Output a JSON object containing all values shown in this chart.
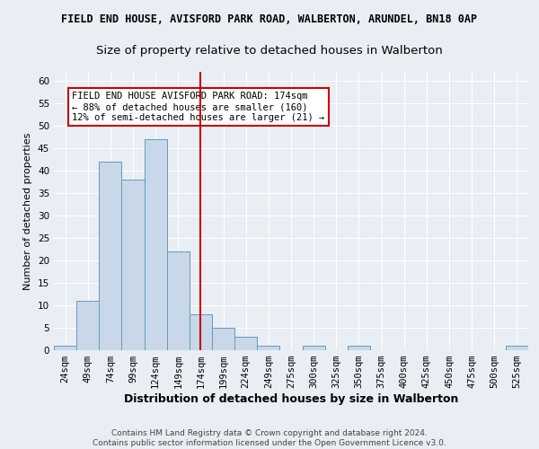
{
  "title": "FIELD END HOUSE, AVISFORD PARK ROAD, WALBERTON, ARUNDEL, BN18 0AP",
  "subtitle": "Size of property relative to detached houses in Walberton",
  "xlabel": "Distribution of detached houses by size in Walberton",
  "ylabel": "Number of detached properties",
  "footer_line1": "Contains HM Land Registry data © Crown copyright and database right 2024.",
  "footer_line2": "Contains public sector information licensed under the Open Government Licence v3.0.",
  "categories": [
    "24sqm",
    "49sqm",
    "74sqm",
    "99sqm",
    "124sqm",
    "149sqm",
    "174sqm",
    "199sqm",
    "224sqm",
    "249sqm",
    "275sqm",
    "300sqm",
    "325sqm",
    "350sqm",
    "375sqm",
    "400sqm",
    "425sqm",
    "450sqm",
    "475sqm",
    "500sqm",
    "525sqm"
  ],
  "values": [
    1,
    11,
    42,
    38,
    47,
    22,
    8,
    5,
    3,
    1,
    0,
    1,
    0,
    1,
    0,
    0,
    0,
    0,
    0,
    0,
    1
  ],
  "bar_color": "#c8d8e8",
  "bar_edge_color": "#6699bb",
  "vline_x": 6,
  "vline_color": "#cc0000",
  "annotation_text": "FIELD END HOUSE AVISFORD PARK ROAD: 174sqm\n← 88% of detached houses are smaller (160)\n12% of semi-detached houses are larger (21) →",
  "annotation_box_edge": "#cc0000",
  "ylim": [
    0,
    62
  ],
  "yticks": [
    0,
    5,
    10,
    15,
    20,
    25,
    30,
    35,
    40,
    45,
    50,
    55,
    60
  ],
  "background_color": "#e8eef4",
  "plot_background": "#e8eef4",
  "grid_color": "#ffffff",
  "title_fontsize": 8.5,
  "subtitle_fontsize": 9.5,
  "xlabel_fontsize": 9,
  "ylabel_fontsize": 8,
  "tick_fontsize": 7.5,
  "annotation_fontsize": 7.5,
  "footer_fontsize": 6.5
}
